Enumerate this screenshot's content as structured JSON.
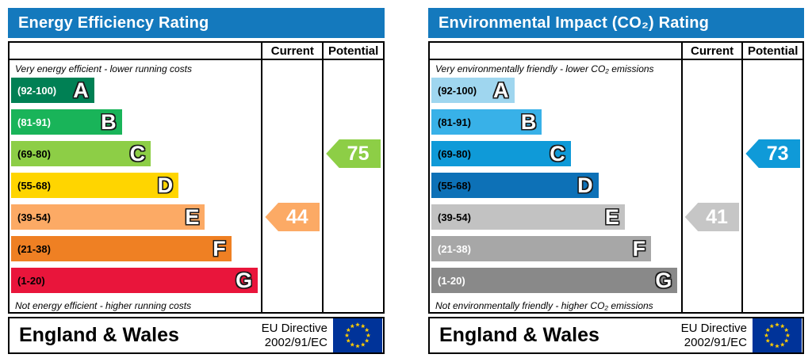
{
  "page": {
    "background": "#ffffff",
    "banner_color": "#1479bd"
  },
  "chart_data": [
    {
      "type": "bar",
      "chart_kind": "epc-rating-scale",
      "title": "Energy Efficiency Rating",
      "columns": {
        "current": "Current",
        "potential": "Potential"
      },
      "top_caption": "Very energy efficient - lower running costs",
      "bottom_caption": "Not energy efficient - higher running costs",
      "banner_color": "#1479bd",
      "bands": [
        {
          "label": "(92-100)",
          "letter": "A",
          "range_min": 92,
          "range_max": 100,
          "color": "#008054",
          "text_color": "#ffffff",
          "width_pct": 33
        },
        {
          "label": "(81-91)",
          "letter": "B",
          "range_min": 81,
          "range_max": 91,
          "color": "#19b459",
          "text_color": "#ffffff",
          "width_pct": 44
        },
        {
          "label": "(69-80)",
          "letter": "C",
          "range_min": 69,
          "range_max": 80,
          "color": "#8dce46",
          "text_color": "#000000",
          "width_pct": 55.5
        },
        {
          "label": "(55-68)",
          "letter": "D",
          "range_min": 55,
          "range_max": 68,
          "color": "#ffd500",
          "text_color": "#000000",
          "width_pct": 66.5
        },
        {
          "label": "(39-54)",
          "letter": "E",
          "range_min": 39,
          "range_max": 54,
          "color": "#fcaa65",
          "text_color": "#000000",
          "width_pct": 77
        },
        {
          "label": "(21-38)",
          "letter": "F",
          "range_min": 21,
          "range_max": 38,
          "color": "#ef8023",
          "text_color": "#000000",
          "width_pct": 87.5
        },
        {
          "label": "(1-20)",
          "letter": "G",
          "range_min": 1,
          "range_max": 20,
          "color": "#e9153b",
          "text_color": "#000000",
          "width_pct": 98
        }
      ],
      "current": {
        "value": 44,
        "band": "E",
        "band_index": 4,
        "color": "#fcaa65"
      },
      "potential": {
        "value": 75,
        "band": "C",
        "band_index": 2,
        "color": "#8dce46"
      },
      "footer": {
        "region": "England & Wales",
        "directive_line1": "EU Directive",
        "directive_line2": "2002/91/EC"
      }
    },
    {
      "type": "bar",
      "chart_kind": "epc-rating-scale",
      "title": "Environmental Impact (CO₂) Rating",
      "columns": {
        "current": "Current",
        "potential": "Potential"
      },
      "top_caption": "Very environmentally friendly - lower CO₂ emissions",
      "bottom_caption": "Not environmentally friendly - higher CO₂ emissions",
      "banner_color": "#1479bd",
      "bands": [
        {
          "label": "(92-100)",
          "letter": "A",
          "range_min": 92,
          "range_max": 100,
          "color": "#9fd6ef",
          "text_color": "#000000",
          "width_pct": 33
        },
        {
          "label": "(81-91)",
          "letter": "B",
          "range_min": 81,
          "range_max": 91,
          "color": "#38b1e8",
          "text_color": "#000000",
          "width_pct": 44
        },
        {
          "label": "(69-80)",
          "letter": "C",
          "range_min": 69,
          "range_max": 80,
          "color": "#0f9ad8",
          "text_color": "#000000",
          "width_pct": 55.5
        },
        {
          "label": "(55-68)",
          "letter": "D",
          "range_min": 55,
          "range_max": 68,
          "color": "#0d71b7",
          "text_color": "#000000",
          "width_pct": 66.5
        },
        {
          "label": "(39-54)",
          "letter": "E",
          "range_min": 39,
          "range_max": 54,
          "color": "#c2c2c2",
          "text_color": "#000000",
          "width_pct": 77
        },
        {
          "label": "(21-38)",
          "letter": "F",
          "range_min": 21,
          "range_max": 38,
          "color": "#a7a7a7",
          "text_color": "#ffffff",
          "width_pct": 87.5
        },
        {
          "label": "(1-20)",
          "letter": "G",
          "range_min": 1,
          "range_max": 20,
          "color": "#898989",
          "text_color": "#ffffff",
          "width_pct": 98
        }
      ],
      "current": {
        "value": 41,
        "band": "E",
        "band_index": 4,
        "color": "#c6c6c6"
      },
      "potential": {
        "value": 73,
        "band": "C",
        "band_index": 2,
        "color": "#0f9ad8"
      },
      "footer": {
        "region": "England & Wales",
        "directive_line1": "EU Directive",
        "directive_line2": "2002/91/EC"
      }
    }
  ]
}
